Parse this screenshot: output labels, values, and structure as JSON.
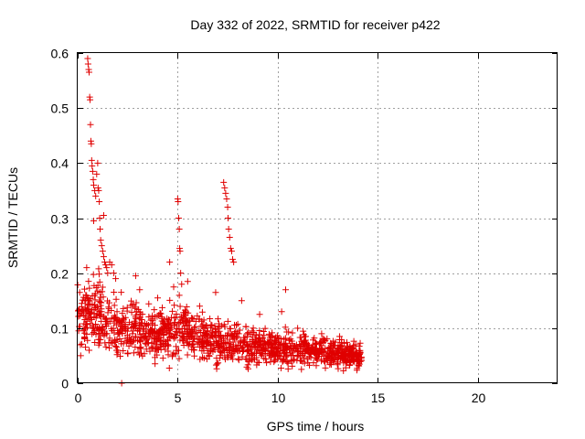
{
  "chart_data": {
    "type": "scatter",
    "title": "Day 332 of 2022, SRMTID for receiver p422",
    "xlabel": "GPS time / hours",
    "ylabel": "SRMTID / TECUs",
    "xlim": [
      0,
      24
    ],
    "ylim": [
      0,
      0.6
    ],
    "xticks": [
      0,
      5,
      10,
      15,
      20
    ],
    "yticks": [
      0,
      0.1,
      0.2,
      0.3,
      0.4,
      0.5,
      0.6
    ],
    "xtick_labels": [
      "0",
      "5",
      "10",
      "15",
      "20"
    ],
    "ytick_labels": [
      "0",
      "0.1",
      "0.2",
      "0.3",
      "0.4",
      "0.5",
      "0.6"
    ],
    "grid": true,
    "marker": "+",
    "color": "#e00000",
    "series": [
      {
        "name": "SRMTID",
        "x": [
          0.5,
          0.52,
          0.55,
          0.57,
          0.6,
          0.62,
          0.64,
          0.66,
          0.68,
          0.7,
          0.72,
          0.75,
          0.78,
          0.8,
          0.85,
          0.9,
          0.95,
          1.0,
          1.02,
          1.05,
          1.08,
          1.1,
          1.12,
          1.15,
          1.2,
          1.25,
          1.3,
          1.35,
          1.4,
          1.45,
          1.5,
          1.6,
          1.7,
          1.8,
          4.6,
          5.0,
          5.02,
          5.05,
          5.08,
          5.1,
          5.12,
          5.15,
          5.2,
          7.3,
          7.35,
          7.4,
          7.45,
          7.5,
          7.52,
          7.55,
          7.6,
          7.65,
          7.7,
          7.75,
          7.8,
          0.1,
          0.2,
          0.3,
          0.4,
          2.2,
          2.9,
          10.4,
          0.15,
          0.45,
          0.8,
          1.3,
          1.9,
          3.1,
          4.0,
          4.8,
          5.5,
          6.1,
          6.9,
          8.2,
          9.1,
          10.2,
          11.0,
          12.2,
          13.1,
          13.9
        ],
        "y": [
          0.59,
          0.58,
          0.57,
          0.565,
          0.52,
          0.515,
          0.47,
          0.44,
          0.435,
          0.405,
          0.395,
          0.385,
          0.37,
          0.36,
          0.35,
          0.34,
          0.38,
          0.4,
          0.355,
          0.35,
          0.33,
          0.3,
          0.28,
          0.26,
          0.25,
          0.24,
          0.23,
          0.22,
          0.215,
          0.21,
          0.2,
          0.22,
          0.215,
          0.2,
          0.22,
          0.335,
          0.33,
          0.3,
          0.28,
          0.245,
          0.24,
          0.2,
          0.18,
          0.365,
          0.355,
          0.345,
          0.335,
          0.32,
          0.3,
          0.28,
          0.265,
          0.245,
          0.24,
          0.225,
          0.22,
          0.165,
          0.145,
          0.13,
          0.15,
          0.0,
          0.195,
          0.17,
          0.05,
          0.21,
          0.295,
          0.305,
          0.19,
          0.17,
          0.155,
          0.175,
          0.185,
          0.14,
          0.165,
          0.15,
          0.125,
          0.13,
          0.1,
          0.09,
          0.085,
          0.07
        ]
      }
    ],
    "dense_cloud": {
      "description_free": true,
      "x_range": [
        0,
        14.2
      ],
      "baseline_by_hour": [
        [
          0,
          0.12
        ],
        [
          1,
          0.13
        ],
        [
          2,
          0.1
        ],
        [
          3,
          0.095
        ],
        [
          4,
          0.09
        ],
        [
          5,
          0.1
        ],
        [
          6,
          0.085
        ],
        [
          7,
          0.075
        ],
        [
          8,
          0.07
        ],
        [
          9,
          0.065
        ],
        [
          10,
          0.065
        ],
        [
          11,
          0.06
        ],
        [
          12,
          0.06
        ],
        [
          13,
          0.055
        ],
        [
          14.2,
          0.05
        ]
      ],
      "spread_by_hour": [
        [
          0,
          0.06
        ],
        [
          1,
          0.07
        ],
        [
          2,
          0.05
        ],
        [
          3,
          0.045
        ],
        [
          4,
          0.045
        ],
        [
          5,
          0.05
        ],
        [
          6,
          0.04
        ],
        [
          7,
          0.04
        ],
        [
          8,
          0.035
        ],
        [
          9,
          0.03
        ],
        [
          10,
          0.03
        ],
        [
          11,
          0.028
        ],
        [
          12,
          0.025
        ],
        [
          13,
          0.025
        ],
        [
          14.2,
          0.02
        ]
      ],
      "count": 1400
    }
  }
}
